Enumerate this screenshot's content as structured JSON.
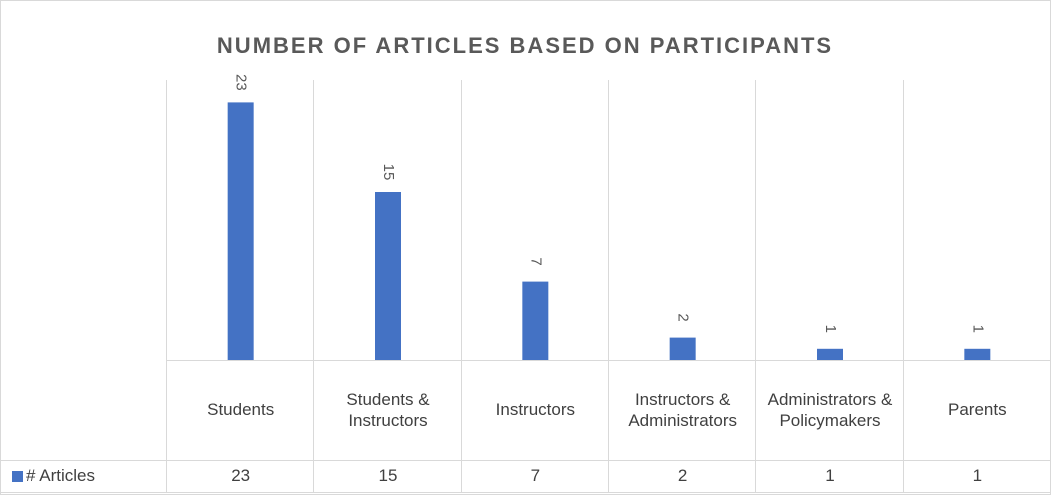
{
  "chart_data": {
    "type": "bar",
    "title": "NUMBER OF ARTICLES BASED ON PARTICIPANTS",
    "categories": [
      "Students",
      "Students & Instructors",
      "Instructors",
      "Instructors & Administrators",
      "Administrators & Policymakers",
      "Parents"
    ],
    "series": [
      {
        "name": "# Articles",
        "color": "#4472c4",
        "values": [
          23,
          15,
          7,
          2,
          1,
          1
        ]
      }
    ],
    "ylim": [
      0,
      25
    ],
    "data_table": true
  }
}
